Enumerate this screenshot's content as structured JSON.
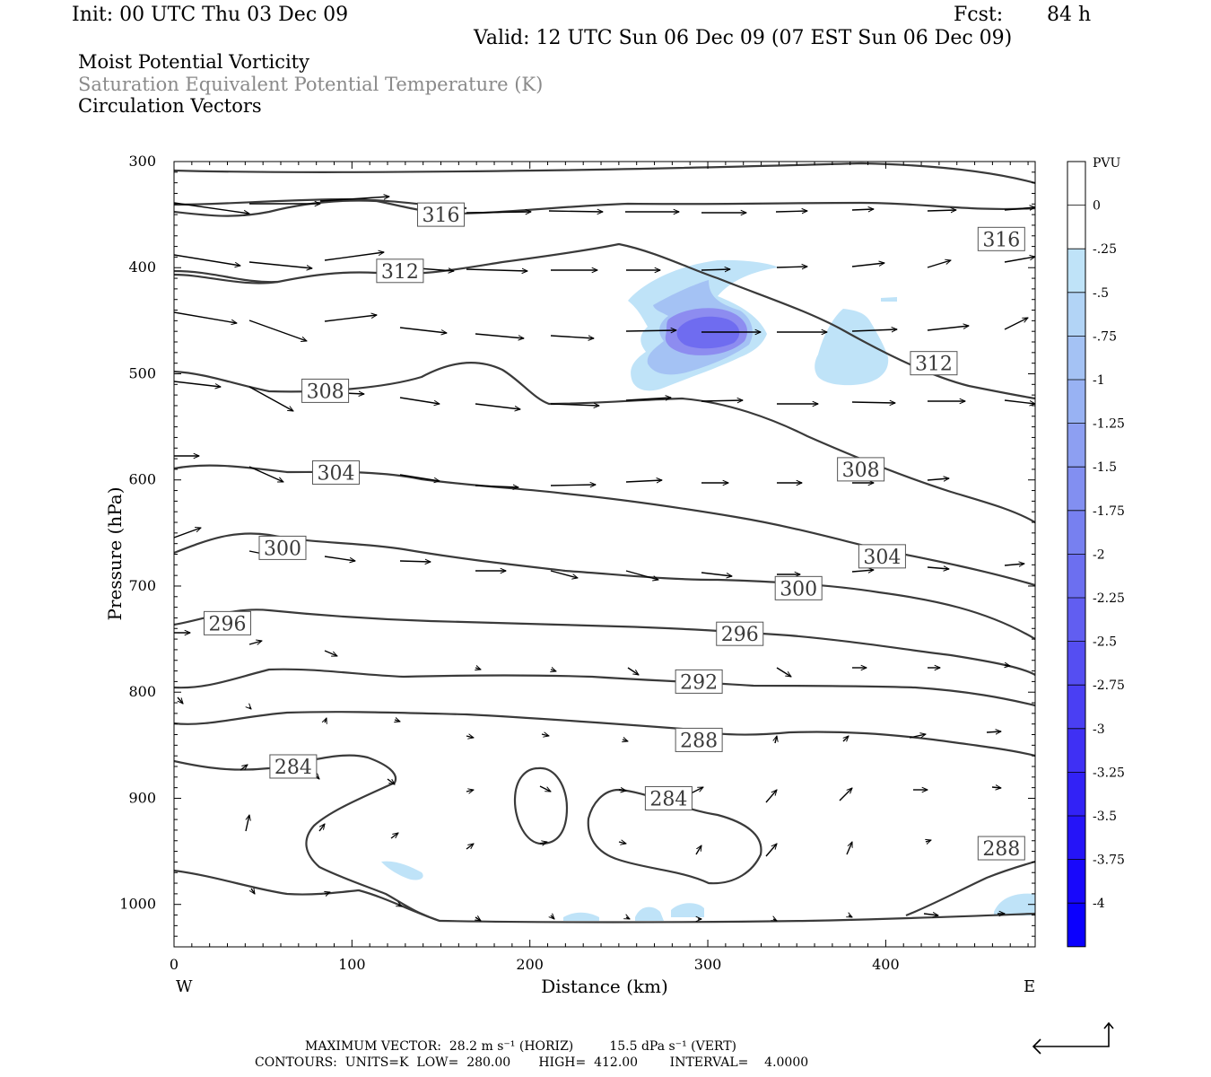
{
  "header": {
    "init": "Init: 00 UTC Thu 03 Dec 09",
    "fcst_label": "Fcst:",
    "fcst_value": "84 h",
    "valid": "Valid: 12 UTC Sun 06 Dec 09 (07 EST Sun 06 Dec 09)"
  },
  "legend_lines": {
    "line1": "Moist Potential Vorticity",
    "line2": "Saturation Equivalent Potential Temperature (K)",
    "line3": "Circulation Vectors"
  },
  "colors": {
    "contour": "#3a3a3a",
    "shade_light": "#bfe3f8",
    "shade_mid": "#a4c2f4",
    "shade_dark": "#8d8cf0",
    "shade_core": "#6f6cf0",
    "grey_text": "#8a8a8a"
  },
  "chart_data": {
    "type": "cross-section",
    "xlabel": "Distance (km)",
    "ylabel": "Pressure (hPa)",
    "x_ticks": [
      "0",
      "100",
      "200",
      "300",
      "400"
    ],
    "y_ticks": [
      "300",
      "400",
      "500",
      "600",
      "700",
      "800",
      "900",
      "1000"
    ],
    "xlim": [
      0,
      484
    ],
    "ylim": [
      300,
      1040
    ],
    "y_inverted": true,
    "left_end": "W",
    "right_end": "E",
    "colorbar": {
      "unit": "PVU",
      "labels": [
        "0",
        "-.25",
        "-.5",
        "-.75",
        "-1",
        "-1.25",
        "-1.5",
        "-1.75",
        "-2",
        "-2.25",
        "-2.5",
        "-2.75",
        "-3",
        "-3.25",
        "-3.5",
        "-3.75",
        "-4"
      ],
      "bins": [
        {
          "color": "#ffffff"
        },
        {
          "color": "#ffffff"
        },
        {
          "color": "#bfe3f8"
        },
        {
          "color": "#b2d4f6"
        },
        {
          "color": "#a4c2f4"
        },
        {
          "color": "#98b2f3"
        },
        {
          "color": "#8d9ff2"
        },
        {
          "color": "#828ff1"
        },
        {
          "color": "#7780f0"
        },
        {
          "color": "#6c6ff0"
        },
        {
          "color": "#615ef1"
        },
        {
          "color": "#554ef2"
        },
        {
          "color": "#4a3ff3"
        },
        {
          "color": "#3f30f4"
        },
        {
          "color": "#3222f6"
        },
        {
          "color": "#2514f8"
        },
        {
          "color": "#1808fb"
        },
        {
          "color": "#0b00fe"
        }
      ]
    },
    "contour_labels": [
      {
        "text": "316",
        "x": 150,
        "p": 350
      },
      {
        "text": "316",
        "x": 465,
        "p": 373
      },
      {
        "text": "312",
        "x": 127,
        "p": 403
      },
      {
        "text": "312",
        "x": 427,
        "p": 490
      },
      {
        "text": "308",
        "x": 85,
        "p": 516
      },
      {
        "text": "308",
        "x": 386,
        "p": 590
      },
      {
        "text": "304",
        "x": 91,
        "p": 593
      },
      {
        "text": "304",
        "x": 398,
        "p": 672
      },
      {
        "text": "300",
        "x": 61,
        "p": 664
      },
      {
        "text": "300",
        "x": 351,
        "p": 702
      },
      {
        "text": "296",
        "x": 30,
        "p": 735
      },
      {
        "text": "296",
        "x": 318,
        "p": 745
      },
      {
        "text": "292",
        "x": 295,
        "p": 790
      },
      {
        "text": "288",
        "x": 295,
        "p": 845
      },
      {
        "text": "288",
        "x": 465,
        "p": 947
      },
      {
        "text": "284",
        "x": 67,
        "p": 870
      },
      {
        "text": "284",
        "x": 278,
        "p": 900
      }
    ]
  },
  "footer": {
    "max_vector": "MAXIMUM VECTOR:  28.2 m s⁻¹ (HORIZ)         15.5 dPa s⁻¹ (VERT)",
    "contours": "CONTOURS:  UNITS=K  LOW=  280.00       HIGH=  412.00        INTERVAL=    4.0000"
  }
}
